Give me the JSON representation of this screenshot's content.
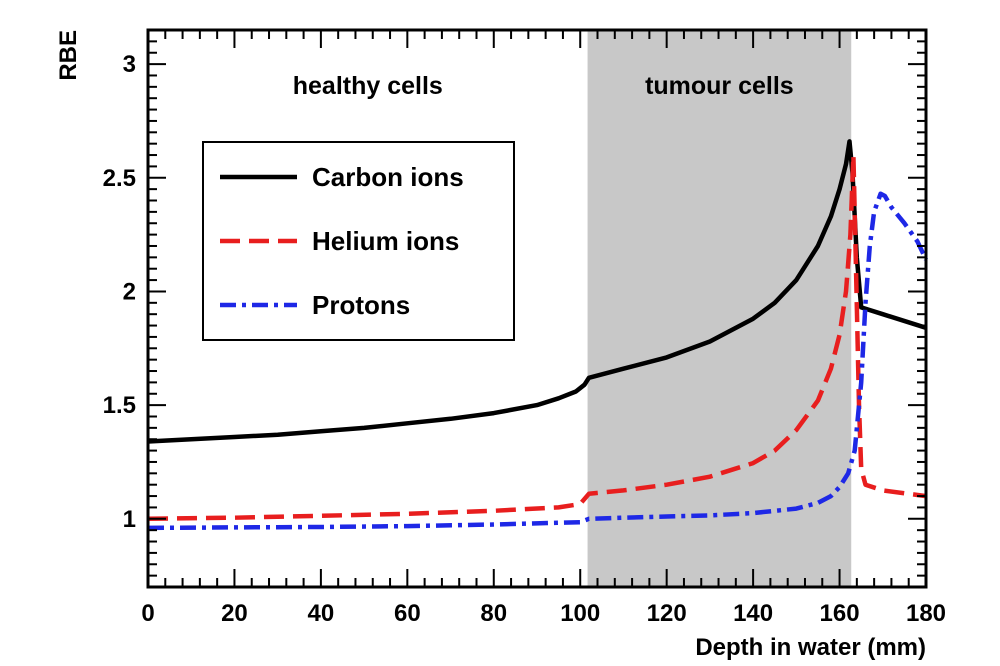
{
  "chart_data": {
    "type": "line",
    "title": "",
    "xlabel": "Depth in water (mm)",
    "ylabel": "RBE",
    "xlim": [
      0,
      180
    ],
    "ylim": [
      0.7,
      3.15
    ],
    "xticks": [
      0,
      20,
      40,
      60,
      80,
      100,
      120,
      140,
      160,
      180
    ],
    "yticks": [
      1,
      1.5,
      2,
      2.5,
      3
    ],
    "grid": false,
    "legend_position": "upper-left",
    "regions": [
      {
        "label": "healthy cells",
        "x_range": [
          0,
          101.7
        ],
        "color": "#ffffff"
      },
      {
        "label": "tumour cells",
        "x_range": [
          101.7,
          162.7
        ],
        "color": "#c8c8c8"
      }
    ],
    "series": [
      {
        "name": "Carbon ions",
        "color": "#000000",
        "style": "solid",
        "points": [
          [
            0,
            1.34
          ],
          [
            10,
            1.35
          ],
          [
            20,
            1.36
          ],
          [
            30,
            1.37
          ],
          [
            40,
            1.385
          ],
          [
            50,
            1.4
          ],
          [
            60,
            1.42
          ],
          [
            70,
            1.44
          ],
          [
            80,
            1.465
          ],
          [
            90,
            1.5
          ],
          [
            95,
            1.53
          ],
          [
            99,
            1.56
          ],
          [
            101,
            1.59
          ],
          [
            102,
            1.62
          ],
          [
            110,
            1.66
          ],
          [
            120,
            1.71
          ],
          [
            130,
            1.78
          ],
          [
            140,
            1.88
          ],
          [
            145,
            1.95
          ],
          [
            150,
            2.05
          ],
          [
            155,
            2.2
          ],
          [
            158,
            2.33
          ],
          [
            160,
            2.45
          ],
          [
            161.5,
            2.56
          ],
          [
            162.3,
            2.66
          ],
          [
            163,
            2.52
          ],
          [
            164,
            2.15
          ],
          [
            165,
            1.93
          ],
          [
            170,
            1.9
          ],
          [
            180,
            1.84
          ]
        ]
      },
      {
        "name": "Helium ions",
        "color": "#e81e1e",
        "style": "dashed",
        "points": [
          [
            0,
            1.0
          ],
          [
            20,
            1.005
          ],
          [
            40,
            1.013
          ],
          [
            60,
            1.022
          ],
          [
            80,
            1.035
          ],
          [
            95,
            1.05
          ],
          [
            100,
            1.065
          ],
          [
            102,
            1.11
          ],
          [
            110,
            1.125
          ],
          [
            120,
            1.15
          ],
          [
            130,
            1.185
          ],
          [
            140,
            1.245
          ],
          [
            145,
            1.3
          ],
          [
            150,
            1.39
          ],
          [
            155,
            1.52
          ],
          [
            158,
            1.66
          ],
          [
            160,
            1.81
          ],
          [
            161.5,
            2.0
          ],
          [
            162.5,
            2.25
          ],
          [
            163.2,
            2.6
          ],
          [
            163.8,
            2.1
          ],
          [
            164.5,
            1.5
          ],
          [
            165,
            1.22
          ],
          [
            166,
            1.15
          ],
          [
            170,
            1.125
          ],
          [
            180,
            1.1
          ]
        ]
      },
      {
        "name": "Protons",
        "color": "#1e28e6",
        "style": "dashdot",
        "points": [
          [
            0,
            0.96
          ],
          [
            20,
            0.962
          ],
          [
            40,
            0.964
          ],
          [
            60,
            0.968
          ],
          [
            80,
            0.975
          ],
          [
            100,
            0.985
          ],
          [
            102,
            1.0
          ],
          [
            110,
            1.005
          ],
          [
            120,
            1.01
          ],
          [
            130,
            1.015
          ],
          [
            140,
            1.025
          ],
          [
            150,
            1.045
          ],
          [
            155,
            1.07
          ],
          [
            158,
            1.1
          ],
          [
            160,
            1.14
          ],
          [
            162,
            1.2
          ],
          [
            163.5,
            1.3
          ],
          [
            165,
            1.6
          ],
          [
            166,
            1.95
          ],
          [
            167,
            2.2
          ],
          [
            168,
            2.35
          ],
          [
            169.5,
            2.43
          ],
          [
            170.5,
            2.42
          ],
          [
            172,
            2.37
          ],
          [
            175,
            2.3
          ],
          [
            178,
            2.22
          ],
          [
            180,
            2.14
          ]
        ]
      }
    ]
  }
}
